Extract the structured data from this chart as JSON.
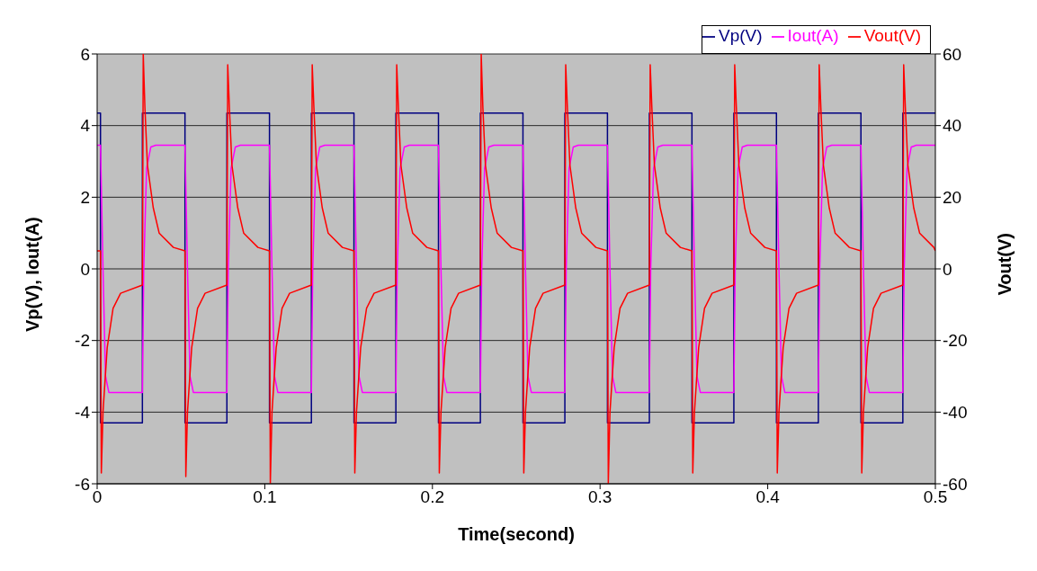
{
  "chart_data": {
    "type": "line",
    "xlabel": "Time(second)",
    "ylabel": "Vp(V), Iout(A)",
    "y2label": "Vout(V)",
    "xlim": [
      0,
      0.5
    ],
    "xticks": [
      0,
      0.1,
      0.2,
      0.3,
      0.4,
      0.5
    ],
    "ylim": [
      -6,
      6
    ],
    "yticks": [
      -6,
      -4,
      -2,
      0,
      2,
      4,
      6
    ],
    "y2lim": [
      -60,
      60
    ],
    "y2ticks": [
      -60,
      -40,
      -20,
      0,
      20,
      40,
      60
    ],
    "grid": "y",
    "legend": "top right",
    "marker": "none",
    "line_style": "solid",
    "series": [
      {
        "name": "Vp(V)",
        "color": "#000080",
        "x": [
          0,
          0.002,
          0.002,
          0.027,
          0.027,
          0.0524,
          0.0524,
          0.0774,
          0.0774,
          0.1028,
          0.1028,
          0.1278,
          0.1278,
          0.1532,
          0.1532,
          0.1782,
          0.1782,
          0.2036,
          0.2036,
          0.2286,
          0.2286,
          0.254,
          0.254,
          0.279,
          0.279,
          0.3044,
          0.3044,
          0.3294,
          0.3294,
          0.3548,
          0.3548,
          0.3798,
          0.3798,
          0.4052,
          0.4052,
          0.4302,
          0.4302,
          0.4556,
          0.4556,
          0.4806,
          0.4806,
          0.5
        ],
        "values": [
          4.35,
          4.35,
          -4.3,
          -4.3,
          4.35,
          4.35,
          -4.3,
          -4.3,
          4.35,
          4.35,
          -4.3,
          -4.3,
          4.35,
          4.35,
          -4.3,
          -4.3,
          4.35,
          4.35,
          -4.3,
          -4.3,
          4.35,
          4.35,
          -4.3,
          -4.3,
          4.35,
          4.35,
          -4.3,
          -4.3,
          4.35,
          4.35,
          -4.3,
          -4.3,
          4.35,
          4.35,
          -4.3,
          -4.3,
          4.35,
          4.35,
          -4.3,
          -4.3,
          4.35,
          4.35
        ]
      },
      {
        "name": "Iout(A)",
        "color": "#ff00ff",
        "x": [
          0,
          0.002,
          0.0035,
          0.005,
          0.007,
          0.027,
          0.0278,
          0.0295,
          0.032,
          0.035,
          0.0524,
          0.0539,
          0.0554,
          0.0574,
          0.0774,
          0.0782,
          0.0799,
          0.0824,
          0.0854,
          0.1028,
          0.1043,
          0.1058,
          0.1078,
          0.1278,
          0.1286,
          0.1303,
          0.1328,
          0.1358,
          0.1532,
          0.1547,
          0.1562,
          0.1582,
          0.1782,
          0.179,
          0.1807,
          0.1832,
          0.1862,
          0.2036,
          0.2051,
          0.2066,
          0.2086,
          0.2286,
          0.2294,
          0.2311,
          0.2336,
          0.2366,
          0.254,
          0.2555,
          0.257,
          0.259,
          0.279,
          0.2798,
          0.2815,
          0.284,
          0.287,
          0.3044,
          0.3059,
          0.3074,
          0.3094,
          0.3294,
          0.3302,
          0.3319,
          0.3344,
          0.3374,
          0.3548,
          0.3563,
          0.3578,
          0.3598,
          0.3798,
          0.3806,
          0.3823,
          0.3848,
          0.3878,
          0.4052,
          0.4067,
          0.4082,
          0.4102,
          0.4302,
          0.431,
          0.4327,
          0.4352,
          0.4382,
          0.4556,
          0.4571,
          0.4586,
          0.4606,
          0.4806,
          0.4814,
          0.4831,
          0.4856,
          0.4886,
          0.5
        ],
        "values": [
          3.45,
          3.45,
          0,
          -3,
          -3.45,
          -3.45,
          0,
          2.8,
          3.4,
          3.45,
          3.45,
          0,
          -3,
          -3.45,
          -3.45,
          0,
          2.8,
          3.4,
          3.45,
          3.45,
          0,
          -3,
          -3.45,
          -3.45,
          0,
          2.8,
          3.4,
          3.45,
          3.45,
          0,
          -3,
          -3.45,
          -3.45,
          0,
          2.8,
          3.4,
          3.45,
          3.45,
          0,
          -3,
          -3.45,
          -3.45,
          0,
          2.8,
          3.4,
          3.45,
          3.45,
          0,
          -3,
          -3.45,
          -3.45,
          0,
          2.8,
          3.4,
          3.45,
          3.45,
          0,
          -3,
          -3.45,
          -3.45,
          0,
          2.8,
          3.4,
          3.45,
          3.45,
          0,
          -3,
          -3.45,
          -3.45,
          0,
          2.8,
          3.4,
          3.45,
          3.45,
          0,
          -3,
          -3.45,
          -3.45,
          0,
          2.8,
          3.4,
          3.45,
          3.45,
          0,
          -3,
          -3.45,
          -3.45,
          0,
          2.8,
          3.4,
          3.45,
          3.45
        ]
      },
      {
        "name": "Vout(V)",
        "color": "#ff0000",
        "axis": "y2",
        "x": [
          0,
          0.002,
          0.0025,
          0.0035,
          0.006,
          0.0095,
          0.014,
          0.027,
          0.0275,
          0.0285,
          0.03,
          0.0335,
          0.037,
          0.0455,
          0.0524,
          0.0529,
          0.0539,
          0.0564,
          0.0599,
          0.0644,
          0.0774,
          0.0779,
          0.0789,
          0.0804,
          0.0839,
          0.0874,
          0.0959,
          0.1028,
          0.1033,
          0.1043,
          0.1068,
          0.1103,
          0.1148,
          0.1278,
          0.1283,
          0.1293,
          0.1308,
          0.1343,
          0.1378,
          0.1463,
          0.1532,
          0.1537,
          0.1547,
          0.1572,
          0.1607,
          0.1652,
          0.1782,
          0.1787,
          0.1797,
          0.1812,
          0.1847,
          0.1882,
          0.1967,
          0.2036,
          0.2041,
          0.2051,
          0.2076,
          0.2111,
          0.2156,
          0.2286,
          0.2291,
          0.2301,
          0.2316,
          0.2351,
          0.2386,
          0.2471,
          0.254,
          0.2545,
          0.2555,
          0.258,
          0.2615,
          0.266,
          0.279,
          0.2795,
          0.2805,
          0.282,
          0.2855,
          0.289,
          0.2975,
          0.3044,
          0.3049,
          0.3059,
          0.3084,
          0.3119,
          0.3164,
          0.3294,
          0.3299,
          0.3309,
          0.3324,
          0.3359,
          0.3394,
          0.3479,
          0.3548,
          0.3553,
          0.3563,
          0.3588,
          0.3623,
          0.3668,
          0.3798,
          0.3803,
          0.3813,
          0.3828,
          0.3863,
          0.3898,
          0.3983,
          0.4052,
          0.4057,
          0.4067,
          0.4092,
          0.4127,
          0.4172,
          0.4302,
          0.4307,
          0.4317,
          0.4332,
          0.4367,
          0.4402,
          0.4487,
          0.4556,
          0.4561,
          0.4571,
          0.4596,
          0.4631,
          0.4676,
          0.4806,
          0.4811,
          0.4821,
          0.4836,
          0.4871,
          0.4906,
          0.4991,
          0.5
        ],
        "values": [
          5,
          5,
          -57,
          -40,
          -22,
          -11,
          -6.8,
          -4.5,
          60,
          45,
          29,
          17,
          10,
          6,
          5,
          -58,
          -40,
          -22,
          -11,
          -6.8,
          -4.5,
          57,
          45,
          29,
          17,
          10,
          6,
          5,
          -60,
          -40,
          -22,
          -11,
          -6.8,
          -4.5,
          57,
          45,
          29,
          17,
          10,
          6,
          5,
          -57,
          -40,
          -22,
          -11,
          -6.8,
          -4.5,
          57,
          45,
          29,
          17,
          10,
          6,
          5,
          -57,
          -40,
          -22,
          -11,
          -6.8,
          -4.5,
          60,
          45,
          29,
          17,
          10,
          6,
          5,
          -57,
          -40,
          -22,
          -11,
          -6.8,
          -4.5,
          57,
          45,
          29,
          17,
          10,
          6,
          5,
          -60,
          -40,
          -22,
          -11,
          -6.8,
          -4.5,
          57,
          45,
          29,
          17,
          10,
          6,
          5,
          -57,
          -40,
          -22,
          -11,
          -6.8,
          -4.5,
          57,
          45,
          29,
          17,
          10,
          6,
          5,
          -57,
          -40,
          -22,
          -11,
          -6.8,
          -4.5,
          57,
          45,
          29,
          17,
          10,
          6,
          5,
          -57,
          -40,
          -22,
          -11,
          -6.8,
          -4.5,
          57,
          45,
          29,
          17,
          10,
          6,
          5
        ]
      }
    ]
  }
}
